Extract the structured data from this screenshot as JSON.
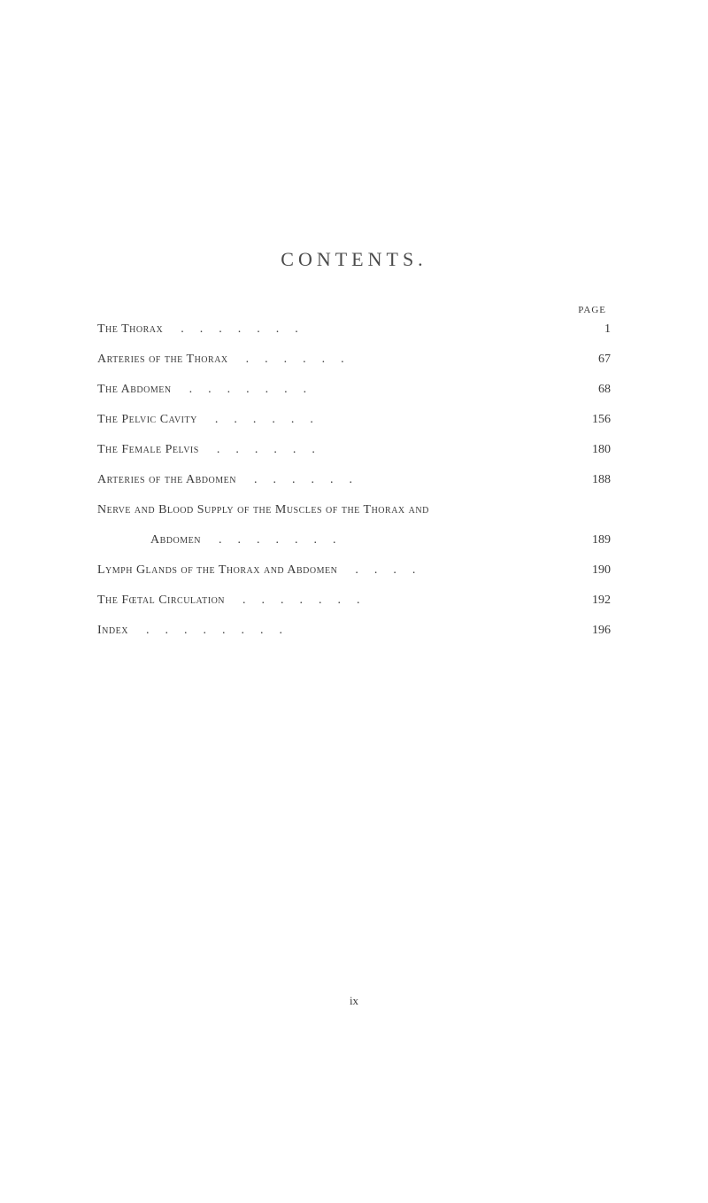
{
  "title": "CONTENTS.",
  "page_header": "page",
  "entries": [
    {
      "label": "The Thorax",
      "page": "1"
    },
    {
      "label": "Arteries of the Thorax",
      "page": "67"
    },
    {
      "label": "The Abdomen",
      "page": "68"
    },
    {
      "label": "The Pelvic Cavity",
      "page": "156"
    },
    {
      "label": "The Female Pelvis",
      "page": "180"
    },
    {
      "label": "Arteries of the Abdomen",
      "page": "188"
    },
    {
      "label": "Nerve and Blood Supply of the Muscles of the Thorax and",
      "page": ""
    },
    {
      "label": "Abdomen",
      "page": "189",
      "continuation": true
    },
    {
      "label": "Lymph Glands of the Thorax and Abdomen",
      "page": "190"
    },
    {
      "label": "The Fœtal Circulation",
      "page": "192"
    },
    {
      "label": "Index",
      "page": "196"
    }
  ],
  "footer_page_number": "ix",
  "colors": {
    "text": "#3a3a3a",
    "background": "#ffffff"
  },
  "typography": {
    "title_fontsize": 22,
    "body_fontsize": 14,
    "header_fontsize": 11,
    "footer_fontsize": 13
  }
}
